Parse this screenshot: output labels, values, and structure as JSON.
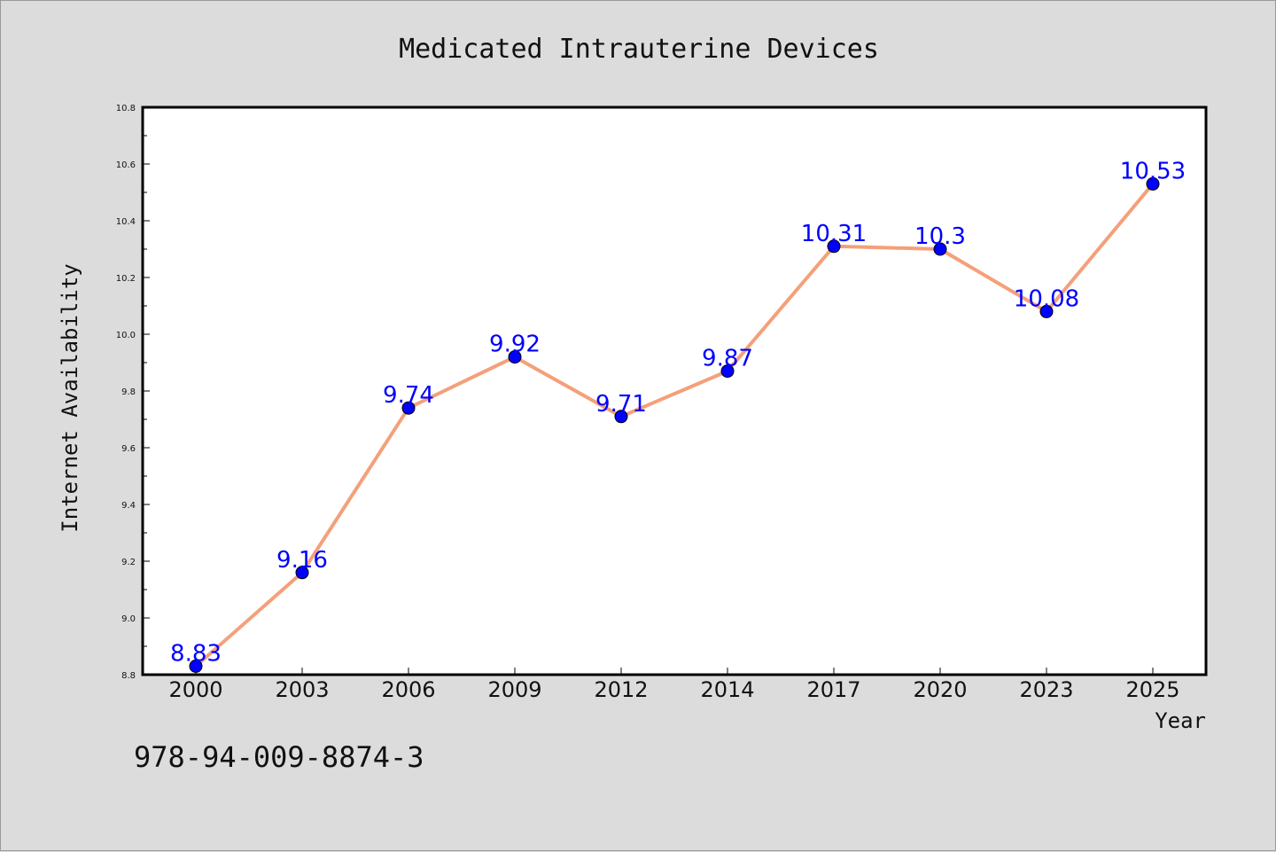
{
  "chart_data": {
    "type": "line",
    "title": "Medicated Intrauterine Devices",
    "xlabel": "Year",
    "ylabel": "Internet Availability",
    "categories": [
      "2000",
      "2003",
      "2006",
      "2009",
      "2012",
      "2014",
      "2017",
      "2020",
      "2023",
      "2025"
    ],
    "series": [
      {
        "values": [
          8.83,
          9.16,
          9.74,
          9.92,
          9.71,
          9.87,
          10.31,
          10.3,
          10.08,
          10.53
        ]
      }
    ],
    "data_labels": [
      "8.83",
      "9.16",
      "9.74",
      "9.92",
      "9.71",
      "9.87",
      "10.31",
      "10.3",
      "10.08",
      "10.53"
    ],
    "ylim": [
      8.8,
      10.8
    ],
    "yticks": [
      "8.8",
      "9.0",
      "9.2",
      "9.4",
      "9.6",
      "9.8",
      "10.0",
      "10.2",
      "10.4",
      "10.6",
      "10.8"
    ],
    "grid": false,
    "legend": "none",
    "colors": {
      "line": "#f4a07a",
      "marker": "#0000ff",
      "label": "#0000ff",
      "background": "#dcdcdc",
      "plot": "#ffffff"
    }
  },
  "footer_text": "978-94-009-8874-3"
}
